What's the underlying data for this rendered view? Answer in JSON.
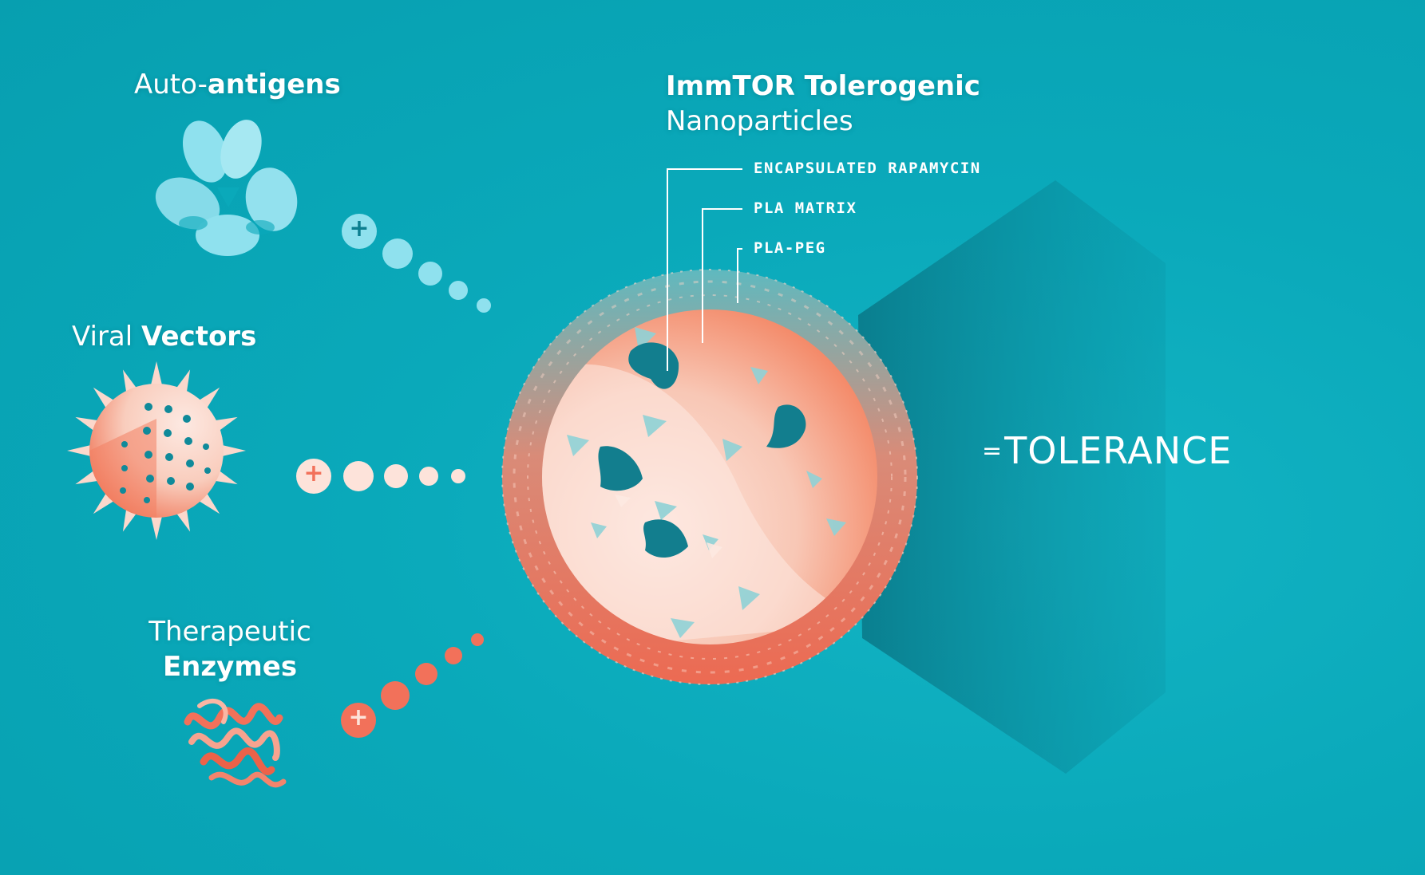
{
  "colors": {
    "background": "#0aa9ba",
    "teal_dark": "#0c7f90",
    "antigen_blue": "#8fe1ee",
    "coral": "#f2715a",
    "peach": "#fde3da"
  },
  "inputs": [
    {
      "label_light": "Auto-",
      "label_bold": "antigens",
      "icon": "auto-antigen-icon"
    },
    {
      "label_light": "Viral ",
      "label_bold": "Vectors",
      "icon": "viral-vector-icon"
    },
    {
      "label_light": "Therapeutic",
      "label_bold": "Enzymes",
      "icon": "enzyme-icon"
    }
  ],
  "plus_symbol": "+",
  "nanoparticle": {
    "title_bold": "ImmTOR Tolerogenic",
    "title_light": "Nanoparticles",
    "callouts": [
      "ENCAPSULATED RAPAMYCIN",
      "PLA MATRIX",
      "PLA-PEG"
    ]
  },
  "result": {
    "prefix": "=",
    "label": "TOLERANCE"
  }
}
